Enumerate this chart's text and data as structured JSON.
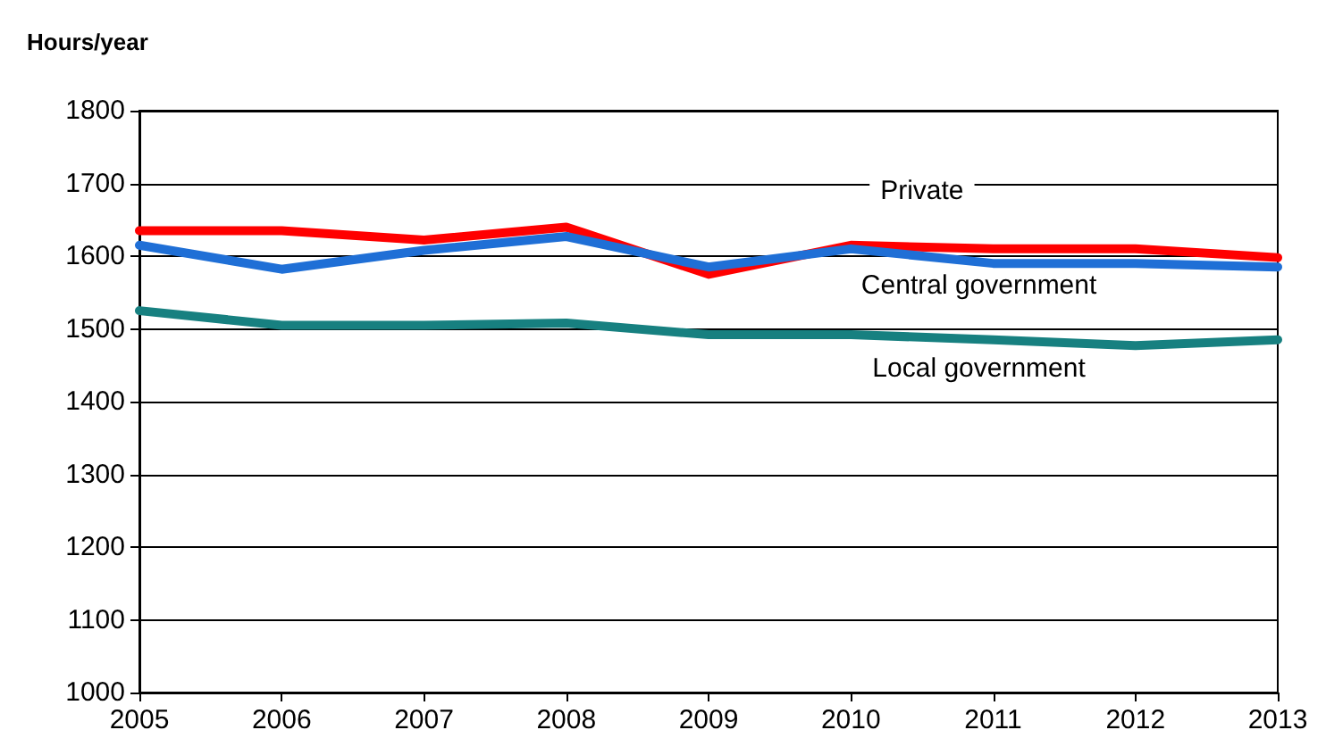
{
  "chart_data": {
    "type": "line",
    "ylabel": "Hours/year",
    "categories": [
      "2005",
      "2006",
      "2007",
      "2008",
      "2009",
      "2010",
      "2011",
      "2012",
      "2013"
    ],
    "series": [
      {
        "name": "Private",
        "color": "#ff0000",
        "values": [
          1635,
          1635,
          1622,
          1640,
          1575,
          1615,
          1610,
          1610,
          1598
        ]
      },
      {
        "name": "Central government",
        "color": "#1f6fd6",
        "values": [
          1615,
          1582,
          1608,
          1627,
          1585,
          1610,
          1590,
          1590,
          1585
        ]
      },
      {
        "name": "Local government",
        "color": "#178080",
        "values": [
          1525,
          1505,
          1505,
          1508,
          1492,
          1492,
          1485,
          1477,
          1485
        ]
      }
    ],
    "ylim": [
      1000,
      1800
    ],
    "yticks": [
      1000,
      1100,
      1200,
      1300,
      1400,
      1500,
      1600,
      1700,
      1800
    ],
    "grid": "y",
    "legend": false,
    "marker": "none",
    "line_style": "solid"
  }
}
